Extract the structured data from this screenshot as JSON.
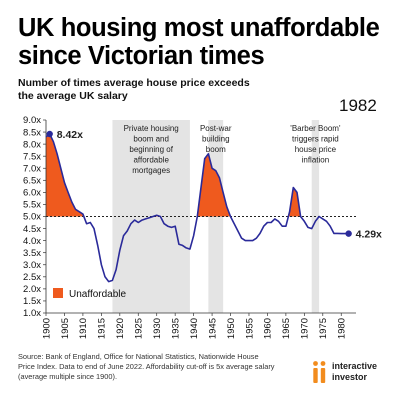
{
  "header": {
    "title_line1": "UK housing most unaffordable",
    "title_line2": "since Victorian times",
    "subtitle_line1": "Number of times average house price exceeds",
    "subtitle_line2": "the average UK salary",
    "year_stamp": "1982"
  },
  "footer": {
    "source_line1": "Source: Bank of England, Office for National Statistics, Nationwide House",
    "source_line2": "Price Index. Data to end of June 2022. Affordability cut-off is 5x average salary",
    "source_line3": "(average multiple since 1900).",
    "brand_line1": "interactive",
    "brand_line2": "investor"
  },
  "colors": {
    "line": "#2a2a9a",
    "fill": "#ef5a1e",
    "band": "#e4e4e4",
    "brand_orange": "#f28c1e",
    "dot": "#2a2a9a"
  },
  "chart_data": {
    "type": "line",
    "title": "UK housing most unaffordable since Victorian times",
    "subtitle": "Number of times average house price exceeds the average UK salary",
    "xlabel": "",
    "ylabel": "",
    "xlim": [
      1900,
      1984
    ],
    "ylim": [
      1.0,
      9.0
    ],
    "x_ticks": [
      1900,
      1905,
      1910,
      1915,
      1920,
      1925,
      1930,
      1935,
      1940,
      1945,
      1950,
      1955,
      1960,
      1965,
      1970,
      1975,
      1980
    ],
    "y_ticks": [
      "1.0x",
      "1.5x",
      "2.0x",
      "2.5x",
      "3.0x",
      "3.5x",
      "4.0x",
      "4.5x",
      "5.0x",
      "5.5x",
      "6.0x",
      "6.5x",
      "7.0x",
      "7.5x",
      "8.0x",
      "8.5x",
      "9.0x"
    ],
    "grid": false,
    "threshold": 5.0,
    "series": [
      {
        "x": [
          1900,
          1901,
          1902,
          1903,
          1904,
          1905,
          1906,
          1907,
          1908,
          1909,
          1910,
          1911,
          1912,
          1913,
          1914,
          1915,
          1916,
          1917,
          1918,
          1919,
          1920,
          1921,
          1922,
          1923,
          1924,
          1925,
          1926,
          1927,
          1928,
          1929,
          1930,
          1931,
          1932,
          1933,
          1934,
          1935,
          1936,
          1937,
          1938,
          1939,
          1940,
          1941,
          1942,
          1943,
          1944,
          1945,
          1946,
          1947,
          1948,
          1949,
          1950,
          1951,
          1952,
          1953,
          1954,
          1955,
          1956,
          1957,
          1958,
          1959,
          1960,
          1961,
          1962,
          1963,
          1964,
          1965,
          1966,
          1967,
          1968,
          1969,
          1970,
          1971,
          1972,
          1973,
          1974,
          1975,
          1976,
          1977,
          1978,
          1979,
          1980,
          1981,
          1982
        ],
        "y": [
          8.3,
          8.42,
          8.1,
          7.6,
          7.0,
          6.4,
          6.0,
          5.6,
          5.3,
          5.2,
          5.1,
          4.7,
          4.75,
          4.5,
          3.8,
          3.0,
          2.5,
          2.3,
          2.35,
          2.8,
          3.6,
          4.2,
          4.4,
          4.7,
          4.85,
          4.75,
          4.85,
          4.9,
          4.95,
          5.0,
          5.05,
          5.0,
          4.7,
          4.6,
          4.55,
          4.6,
          3.85,
          3.8,
          3.7,
          3.65,
          4.2,
          5.0,
          6.2,
          7.4,
          7.6,
          7.0,
          6.9,
          6.6,
          6.0,
          5.4,
          5.0,
          4.7,
          4.4,
          4.1,
          4.0,
          4.0,
          4.0,
          4.1,
          4.3,
          4.6,
          4.75,
          4.75,
          4.9,
          4.8,
          4.6,
          4.6,
          5.2,
          6.2,
          6.0,
          5.0,
          4.8,
          4.55,
          4.5,
          4.8,
          5.0,
          4.9,
          4.8,
          4.6,
          4.3,
          4.3,
          4.29,
          4.29,
          4.29
        ]
      }
    ],
    "shaded_periods": [
      {
        "label_lines": [
          "Private housing",
          "boom and",
          "beginning of",
          "affordable",
          "mortgages"
        ],
        "x_start": 1918,
        "x_end": 1939
      },
      {
        "label_lines": [
          "Post-war",
          "building",
          "boom"
        ],
        "x_start": 1944,
        "x_end": 1948
      },
      {
        "label_lines": [
          "'Barber Boom'",
          "triggers rapid",
          "house price",
          "inflation"
        ],
        "x_start": 1972,
        "x_end": 1974
      }
    ],
    "annotations": [
      {
        "text": "8.42x",
        "x": 1901,
        "y": 8.42
      },
      {
        "text": "4.29x",
        "x": 1982,
        "y": 4.29
      }
    ],
    "legend": {
      "label": "Unaffordable",
      "position": "bottom-left"
    }
  }
}
